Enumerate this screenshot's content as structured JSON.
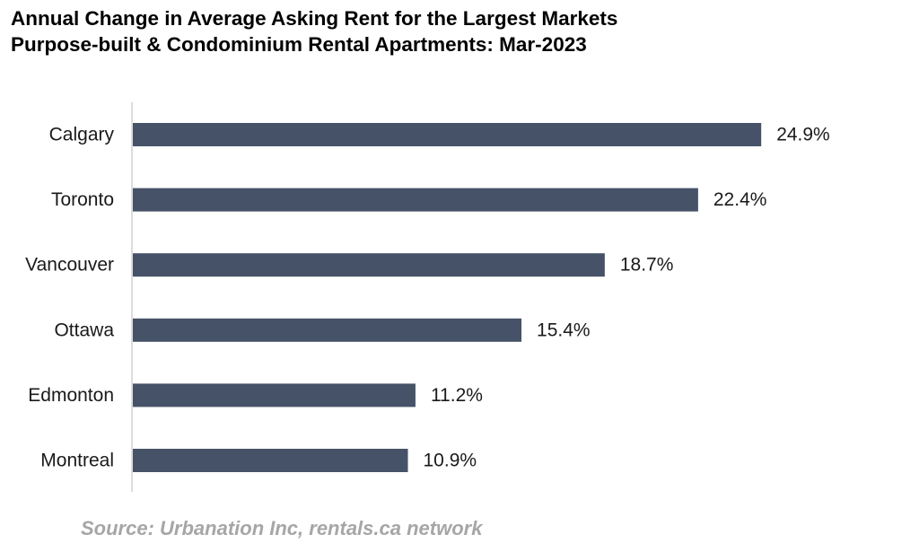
{
  "chart_data": {
    "type": "bar",
    "orientation": "horizontal",
    "title": "Annual Change in Average Asking Rent for the Largest Markets",
    "subtitle": "Purpose-built & Condominium Rental Apartments: Mar-2023",
    "categories": [
      "Calgary",
      "Toronto",
      "Vancouver",
      "Ottawa",
      "Edmonton",
      "Montreal"
    ],
    "values": [
      24.9,
      22.4,
      18.7,
      15.4,
      11.2,
      10.9
    ],
    "value_labels": [
      "24.9%",
      "22.4%",
      "18.7%",
      "15.4%",
      "11.2%",
      "10.9%"
    ],
    "xlim": [
      0,
      30
    ],
    "grid": false,
    "legend": "none",
    "bar_color": "#465267"
  },
  "source": "Source: Urbanation Inc, rentals.ca network"
}
